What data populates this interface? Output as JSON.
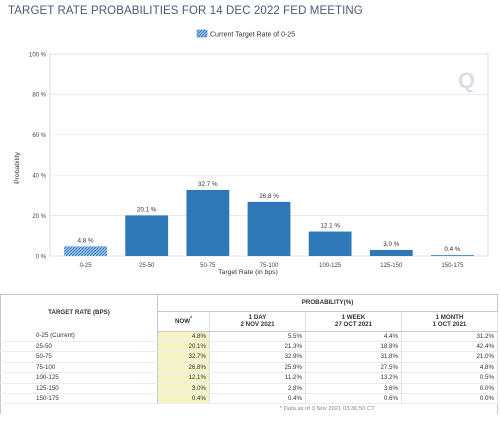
{
  "title": "TARGET RATE PROBABILITIES FOR 14 DEC 2022 FED MEETING",
  "colors": {
    "bar": "#2f78b7",
    "hatch_bg": "#9fc4ea",
    "hatch_line": "#2f78b7",
    "highlight": "#f3f3c6",
    "grid": "#e4e4e4"
  },
  "chart_data": {
    "type": "bar",
    "title": "",
    "legend": [
      "Current Target Rate of 0-25"
    ],
    "legend_placement": "top-center",
    "xlabel": "Target Rate (in bps)",
    "ylabel": "Probability",
    "ylim": [
      0,
      100
    ],
    "yticks": [
      "0 %",
      "20 %",
      "40 %",
      "60 %",
      "80 %",
      "100 %"
    ],
    "categories": [
      "0-25",
      "25-50",
      "50-75",
      "75-100",
      "100-125",
      "125-150",
      "150-175"
    ],
    "values": [
      4.8,
      20.1,
      32.7,
      26.8,
      12.1,
      3.0,
      0.4
    ],
    "value_labels": [
      "4.8 %",
      "20.1 %",
      "32.7 %",
      "26.8 %",
      "12.1 %",
      "3.0 %",
      "0.4 %"
    ],
    "current_index": 0,
    "grid": true
  },
  "table": {
    "rate_header": "TARGET RATE (BPS)",
    "prob_header": "PROBABILITY(%)",
    "columns": [
      {
        "line1": "NOW",
        "line2": "",
        "star": "*"
      },
      {
        "line1": "1 DAY",
        "line2": "2 NOV 2021",
        "star": ""
      },
      {
        "line1": "1 WEEK",
        "line2": "27 OCT 2021",
        "star": ""
      },
      {
        "line1": "1 MONTH",
        "line2": "1 OCT 2021",
        "star": ""
      }
    ],
    "rows": [
      {
        "rate": "0-25 (Current)",
        "values": [
          "4.8%",
          "5.5%",
          "4.4%",
          "31.2%"
        ]
      },
      {
        "rate": "25-50",
        "values": [
          "20.1%",
          "21.3%",
          "18.8%",
          "42.4%"
        ]
      },
      {
        "rate": "50-75",
        "values": [
          "32.7%",
          "32.9%",
          "31.8%",
          "21.0%"
        ]
      },
      {
        "rate": "75-100",
        "values": [
          "26.8%",
          "25.9%",
          "27.5%",
          "4.8%"
        ]
      },
      {
        "rate": "100-125",
        "values": [
          "12.1%",
          "11.2%",
          "13.2%",
          "0.5%"
        ]
      },
      {
        "rate": "125-150",
        "values": [
          "3.0%",
          "2.8%",
          "3.6%",
          "0.0%"
        ]
      },
      {
        "rate": "150-175",
        "values": [
          "0.4%",
          "0.4%",
          "0.6%",
          "0.0%"
        ]
      }
    ],
    "note": "* Data as of 3 Nov 2021 03:36:50 CT"
  }
}
